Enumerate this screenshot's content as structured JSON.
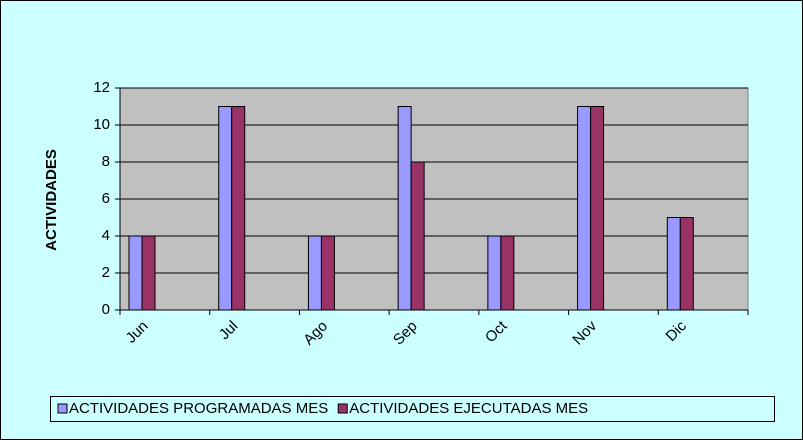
{
  "chart_data": {
    "type": "bar",
    "y_label": "ACTIVIDADES",
    "categories": [
      "Jun",
      "Jul",
      "Ago",
      "Sep",
      "Oct",
      "Nov",
      "Dic"
    ],
    "series": [
      {
        "name": "ACTIVIDADES PROGRAMADAS MES",
        "color": "#9999ff",
        "values": [
          4,
          11,
          4,
          11,
          4,
          11,
          5
        ]
      },
      {
        "name": "ACTIVIDADES EJECUTADAS MES",
        "color": "#993366",
        "values": [
          4,
          11,
          4,
          8,
          4,
          11,
          5
        ]
      }
    ],
    "ylim": [
      0,
      12
    ],
    "yticks": [
      0,
      2,
      4,
      6,
      8,
      10,
      12
    ],
    "grid": true,
    "legend": "bottom"
  }
}
